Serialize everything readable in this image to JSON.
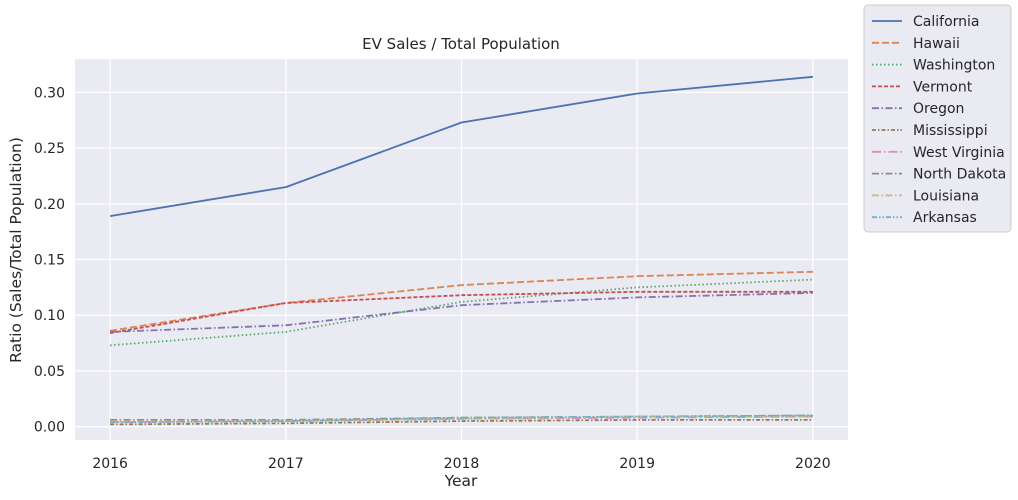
{
  "chart_data": {
    "type": "line",
    "title": "EV Sales / Total Population",
    "xlabel": "Year",
    "ylabel": "Ratio (Sales/Total Population)",
    "x": [
      2016,
      2017,
      2018,
      2019,
      2020
    ],
    "x_tick_labels": [
      "2016",
      "2017",
      "2018",
      "2019",
      "2020"
    ],
    "y_ticks": [
      0.0,
      0.05,
      0.1,
      0.15,
      0.2,
      0.25,
      0.3
    ],
    "y_tick_labels": [
      "0.00",
      "0.05",
      "0.10",
      "0.15",
      "0.20",
      "0.25",
      "0.30"
    ],
    "xlim": [
      2015.8,
      2020.2
    ],
    "ylim": [
      -0.012,
      0.33
    ],
    "grid": true,
    "legend_position": "outside top-right",
    "series": [
      {
        "name": "California",
        "color": "#4c72b0",
        "dash": "solid",
        "values": [
          0.189,
          0.215,
          0.273,
          0.299,
          0.314
        ]
      },
      {
        "name": "Hawaii",
        "color": "#dd8452",
        "dash": "dashed",
        "values": [
          0.086,
          0.111,
          0.127,
          0.135,
          0.139
        ]
      },
      {
        "name": "Washington",
        "color": "#55a868",
        "dash": "dotted",
        "values": [
          0.073,
          0.085,
          0.112,
          0.125,
          0.132
        ]
      },
      {
        "name": "Vermont",
        "color": "#c44e52",
        "dash": "dashed-short",
        "values": [
          0.084,
          0.111,
          0.118,
          0.121,
          0.121
        ]
      },
      {
        "name": "Oregon",
        "color": "#8172b3",
        "dash": "dashdot",
        "values": [
          0.085,
          0.091,
          0.109,
          0.116,
          0.12
        ]
      },
      {
        "name": "Mississippi",
        "color": "#937860",
        "dash": "dashdot-short",
        "values": [
          0.002,
          0.003,
          0.005,
          0.006,
          0.006
        ]
      },
      {
        "name": "West Virginia",
        "color": "#da8bc3",
        "dash": "dashdot-long",
        "values": [
          0.004,
          0.005,
          0.007,
          0.008,
          0.009
        ]
      },
      {
        "name": "North Dakota",
        "color": "#8c8c8c",
        "dash": "dashdot",
        "values": [
          0.006,
          0.006,
          0.008,
          0.009,
          0.01
        ]
      },
      {
        "name": "Louisiana",
        "color": "#ccb974",
        "dash": "dashdot",
        "values": [
          0.005,
          0.005,
          0.007,
          0.009,
          0.009
        ]
      },
      {
        "name": "Arkansas",
        "color": "#64b5cd",
        "dash": "dashdotdot",
        "values": [
          0.004,
          0.005,
          0.008,
          0.009,
          0.01
        ]
      }
    ]
  }
}
